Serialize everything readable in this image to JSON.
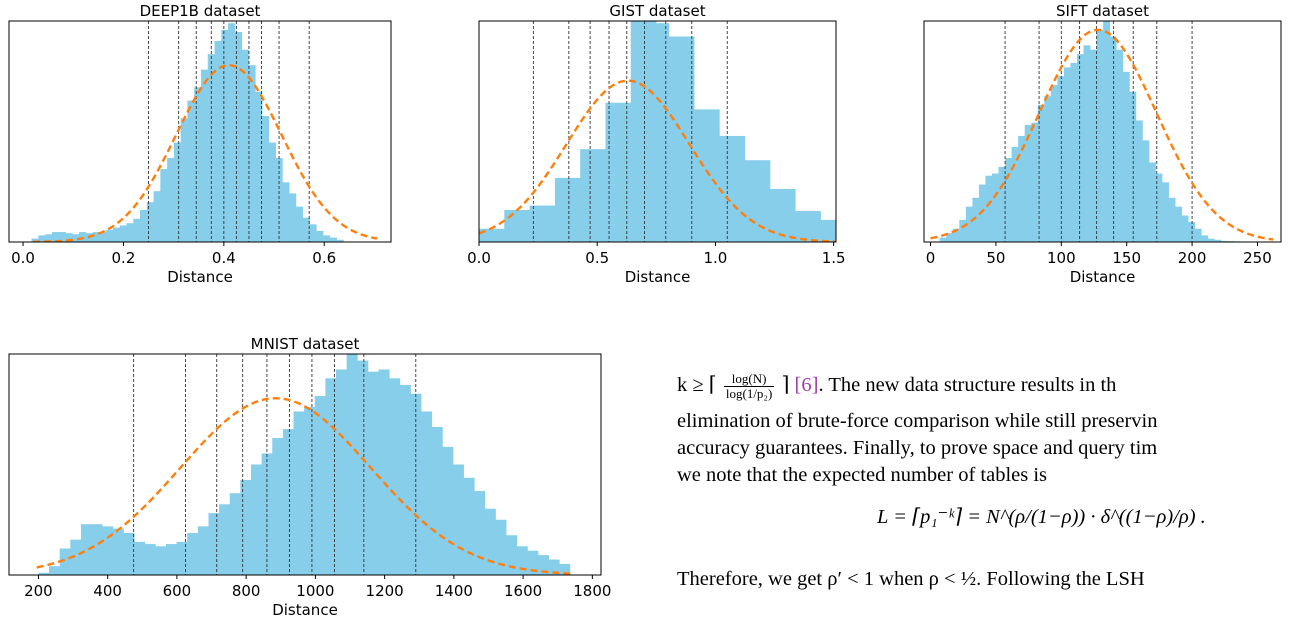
{
  "chart_data": [
    {
      "type": "bar",
      "title": "DEEP1B dataset",
      "xlabel": "Distance",
      "ylabel": "",
      "xlim": [
        -0.028,
        0.733
      ],
      "ylim": [
        0,
        1.0
      ],
      "xticks": [
        0.0,
        0.2,
        0.4,
        0.6
      ],
      "tick_labels": [
        "0.0",
        "0.2",
        "0.4",
        "0.6"
      ],
      "grid": false,
      "bar_color": "#87ceeb",
      "fit_color": "#ff7f0e",
      "bins": {
        "start": 0.017,
        "width": 0.0135,
        "heights": [
          0.015,
          0.03,
          0.035,
          0.045,
          0.045,
          0.04,
          0.035,
          0.045,
          0.04,
          0.045,
          0.045,
          0.055,
          0.065,
          0.075,
          0.085,
          0.105,
          0.145,
          0.18,
          0.23,
          0.33,
          0.38,
          0.45,
          0.56,
          0.64,
          0.7,
          0.78,
          0.85,
          0.91,
          0.96,
          0.99,
          0.95,
          0.87,
          0.8,
          0.68,
          0.57,
          0.45,
          0.38,
          0.27,
          0.22,
          0.16,
          0.11,
          0.08,
          0.05,
          0.03,
          0.02,
          0.01
        ]
      },
      "fit": {
        "mean": 0.41,
        "sd": 0.105,
        "peak": 0.8,
        "from": 0.02,
        "to": 0.705
      },
      "vlines": [
        0.25,
        0.31,
        0.345,
        0.375,
        0.4,
        0.425,
        0.45,
        0.475,
        0.51,
        0.57
      ]
    },
    {
      "type": "bar",
      "title": "GIST dataset",
      "xlabel": "Distance",
      "ylabel": "",
      "xlim": [
        0.0,
        1.51
      ],
      "ylim": [
        0,
        1.0
      ],
      "xticks": [
        0.0,
        0.5,
        1.0,
        1.5
      ],
      "tick_labels": [
        "0.0",
        "0.5",
        "1.0",
        "1.5"
      ],
      "grid": false,
      "bar_color": "#87ceeb",
      "fit_color": "#ff7f0e",
      "bins": {
        "start": 0.0,
        "width": 0.0535,
        "heights": [
          0.06,
          0.06,
          0.145,
          0.145,
          0.165,
          0.165,
          0.29,
          0.29,
          0.42,
          0.42,
          0.63,
          0.63,
          1.0,
          1.0,
          0.99,
          0.93,
          0.93,
          0.6,
          0.6,
          0.48,
          0.48,
          0.37,
          0.37,
          0.24,
          0.24,
          0.14,
          0.14,
          0.1,
          0.1,
          0.045,
          0.045,
          0.02,
          0.02,
          0.01,
          0.01,
          0.01,
          0.01,
          0.01
        ]
      },
      "fit": {
        "mean": 0.63,
        "sd": 0.26,
        "peak": 0.73,
        "from": 0.0,
        "to": 1.51
      },
      "vlines": [
        0.23,
        0.38,
        0.47,
        0.55,
        0.625,
        0.7,
        0.79,
        0.9,
        1.05
      ]
    },
    {
      "type": "bar",
      "title": "SIFT dataset",
      "xlabel": "Distance",
      "ylabel": "",
      "xlim": [
        -5,
        268
      ],
      "ylim": [
        0,
        1.0
      ],
      "xticks": [
        0,
        50,
        100,
        150,
        200,
        250
      ],
      "tick_labels": [
        "0",
        "50",
        "100",
        "150",
        "200",
        "250"
      ],
      "grid": false,
      "bar_color": "#87ceeb",
      "fit_color": "#ff7f0e",
      "bins": {
        "start": 7,
        "width": 5.0,
        "heights": [
          0.02,
          0.04,
          0.06,
          0.1,
          0.16,
          0.2,
          0.26,
          0.3,
          0.31,
          0.34,
          0.38,
          0.43,
          0.48,
          0.53,
          0.54,
          0.62,
          0.66,
          0.71,
          0.75,
          0.79,
          0.81,
          0.85,
          0.89,
          0.87,
          0.96,
          1.0,
          0.93,
          0.87,
          0.77,
          0.68,
          0.55,
          0.46,
          0.36,
          0.31,
          0.27,
          0.2,
          0.16,
          0.12,
          0.09,
          0.06,
          0.03,
          0.015,
          0.01,
          0.005,
          0.004,
          0.003,
          0.002,
          0.001,
          0.001,
          0.0005,
          0.0005
        ]
      },
      "fit": {
        "mean": 128,
        "sd": 45,
        "peak": 0.96,
        "from": 0,
        "to": 262
      },
      "vlines": [
        57,
        83,
        100,
        114,
        127,
        140,
        155,
        173,
        200
      ]
    },
    {
      "type": "bar",
      "title": "MNIST dataset",
      "xlabel": "Distance",
      "ylabel": "",
      "xlim": [
        115,
        1825
      ],
      "ylim": [
        0,
        1.0
      ],
      "xticks": [
        200,
        400,
        600,
        800,
        1000,
        1200,
        1400,
        1600,
        1800
      ],
      "tick_labels": [
        "200",
        "400",
        "600",
        "800",
        "1000",
        "1200",
        "1400",
        "1600",
        "1800"
      ],
      "grid": false,
      "bar_color": "#87ceeb",
      "fit_color": "#ff7f0e",
      "bins": {
        "start": 200,
        "width": 30.7,
        "heights": [
          0.01,
          0.04,
          0.12,
          0.16,
          0.23,
          0.23,
          0.22,
          0.21,
          0.19,
          0.15,
          0.14,
          0.13,
          0.14,
          0.15,
          0.19,
          0.22,
          0.28,
          0.32,
          0.37,
          0.43,
          0.5,
          0.55,
          0.62,
          0.66,
          0.74,
          0.76,
          0.81,
          0.89,
          0.93,
          1.0,
          0.97,
          0.92,
          0.93,
          0.89,
          0.86,
          0.82,
          0.74,
          0.67,
          0.58,
          0.5,
          0.44,
          0.38,
          0.3,
          0.25,
          0.18,
          0.13,
          0.11,
          0.09,
          0.07,
          0.05
        ]
      },
      "fit": {
        "mean": 885,
        "sd": 275,
        "peak": 0.8,
        "from": 195,
        "to": 1745
      },
      "vlines": [
        475,
        625,
        715,
        790,
        860,
        925,
        990,
        1055,
        1140,
        1290
      ]
    }
  ],
  "paper": {
    "line1_prefix": "k ≥ ⌈",
    "line1_frac_num": "log(N)",
    "line1_frac_den": "log(1/p₂)",
    "line1_bracket_close": "⌉",
    "line1_ref": "[6]",
    "line1_rest": ". The new data structure results in th",
    "line2": "elimination of brute-force comparison while still preservin",
    "line3": "accuracy guarantees. Finally, to prove space and query tim",
    "line4": "we note that the expected number of tables is",
    "formula": "L = ⌈p₁⁻ᵏ⌉ = N^(ρ/(1−ρ)) · δ^((1−ρ)/ρ) .",
    "line5": "Therefore, we get ρ′ < 1 when ρ < ½. Following the LSH"
  }
}
